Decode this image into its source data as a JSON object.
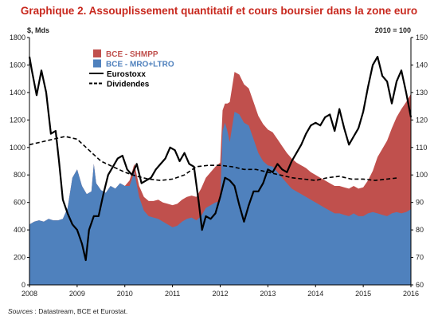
{
  "title": "Graphique 2. Assouplissement quantitatif et cours boursier dans la zone euro",
  "source": {
    "label": "Sources",
    "text": " : Datastream, BCE et Eurostat."
  },
  "colors": {
    "shmpp": "#c0504d",
    "mro": "#4f81bd",
    "eurostoxx": "#000000",
    "dividendes": "#000000",
    "title": "#c8281e",
    "legend_shmpp_text": "#c0504d",
    "legend_mro_text": "#4f81bd"
  },
  "chart_data": {
    "type": "area",
    "left_axis": {
      "unit": "$, Mds",
      "ylim": [
        0,
        1800
      ],
      "ticks": [
        0,
        200,
        400,
        600,
        800,
        1000,
        1200,
        1400,
        1600,
        1800
      ]
    },
    "right_axis": {
      "unit": "2010 = 100",
      "ylim": [
        60,
        150
      ],
      "ticks": [
        60,
        70,
        80,
        90,
        100,
        110,
        120,
        130,
        140,
        150
      ]
    },
    "x_axis": {
      "xlim": [
        2008,
        2016
      ],
      "ticks": [
        "2008",
        "2009",
        "2010",
        "2011",
        "2012",
        "2013",
        "2014",
        "2015",
        "2016"
      ]
    },
    "legend": {
      "position": "top-left",
      "entries": [
        {
          "label": "BCE - SHMPP",
          "kind": "area",
          "color": "#c0504d"
        },
        {
          "label": "BCE - MRO+LTRO",
          "kind": "area",
          "color": "#4f81bd"
        },
        {
          "label": "Eurostoxx",
          "kind": "solid-line",
          "color": "#000000"
        },
        {
          "label": "Dividendes",
          "kind": "dashed-line",
          "color": "#000000"
        }
      ]
    },
    "series": [
      {
        "name": "BCE - MRO+LTRO",
        "axis": "left",
        "kind": "area",
        "x": [
          2008.0,
          2008.1,
          2008.2,
          2008.3,
          2008.4,
          2008.5,
          2008.6,
          2008.7,
          2008.8,
          2008.9,
          2009.0,
          2009.1,
          2009.2,
          2009.3,
          2009.35,
          2009.4,
          2009.5,
          2009.6,
          2009.7,
          2009.8,
          2009.9,
          2010.0,
          2010.1,
          2010.2,
          2010.3,
          2010.4,
          2010.5,
          2010.6,
          2010.7,
          2010.8,
          2010.9,
          2011.0,
          2011.1,
          2011.2,
          2011.3,
          2011.4,
          2011.5,
          2011.6,
          2011.7,
          2011.8,
          2011.9,
          2012.0,
          2012.05,
          2012.1,
          2012.15,
          2012.2,
          2012.3,
          2012.4,
          2012.5,
          2012.6,
          2012.7,
          2012.8,
          2012.9,
          2013.0,
          2013.1,
          2013.2,
          2013.3,
          2013.4,
          2013.5,
          2013.6,
          2013.7,
          2013.8,
          2013.9,
          2014.0,
          2014.1,
          2014.2,
          2014.3,
          2014.4,
          2014.5,
          2014.6,
          2014.7,
          2014.8,
          2014.9,
          2015.0,
          2015.1,
          2015.2,
          2015.3,
          2015.4,
          2015.5,
          2015.6,
          2015.7,
          2015.8,
          2015.9,
          2016.0
        ],
        "values": [
          440,
          460,
          470,
          460,
          480,
          470,
          470,
          480,
          560,
          780,
          840,
          720,
          660,
          680,
          880,
          740,
          690,
          670,
          720,
          700,
          740,
          720,
          720,
          820,
          640,
          540,
          500,
          490,
          480,
          460,
          440,
          420,
          430,
          460,
          480,
          490,
          470,
          500,
          560,
          580,
          600,
          610,
          1120,
          1180,
          1120,
          1040,
          1260,
          1240,
          1180,
          1160,
          1060,
          960,
          900,
          870,
          860,
          820,
          780,
          740,
          700,
          680,
          660,
          640,
          620,
          600,
          580,
          560,
          540,
          520,
          520,
          510,
          500,
          520,
          500,
          500,
          520,
          530,
          520,
          510,
          500,
          520,
          530,
          520,
          530,
          550
        ]
      },
      {
        "name": "BCE - SHMPP",
        "axis": "left",
        "kind": "area",
        "x": [
          2008.0,
          2008.1,
          2008.2,
          2008.3,
          2008.4,
          2008.5,
          2008.6,
          2008.7,
          2008.8,
          2008.9,
          2009.0,
          2009.1,
          2009.2,
          2009.3,
          2009.35,
          2009.4,
          2009.5,
          2009.6,
          2009.7,
          2009.8,
          2009.9,
          2010.0,
          2010.1,
          2010.2,
          2010.3,
          2010.4,
          2010.5,
          2010.6,
          2010.7,
          2010.8,
          2010.9,
          2011.0,
          2011.1,
          2011.2,
          2011.3,
          2011.4,
          2011.5,
          2011.6,
          2011.7,
          2011.8,
          2011.9,
          2012.0,
          2012.05,
          2012.1,
          2012.15,
          2012.2,
          2012.3,
          2012.4,
          2012.5,
          2012.6,
          2012.7,
          2012.8,
          2012.9,
          2013.0,
          2013.1,
          2013.2,
          2013.3,
          2013.4,
          2013.5,
          2013.6,
          2013.7,
          2013.8,
          2013.9,
          2014.0,
          2014.1,
          2014.2,
          2014.3,
          2014.4,
          2014.5,
          2014.6,
          2014.7,
          2014.8,
          2014.9,
          2015.0,
          2015.1,
          2015.2,
          2015.3,
          2015.4,
          2015.5,
          2015.6,
          2015.7,
          2015.8,
          2015.9,
          2016.0
        ],
        "values": [
          0,
          0,
          0,
          0,
          0,
          0,
          0,
          0,
          0,
          0,
          0,
          0,
          0,
          0,
          0,
          0,
          0,
          0,
          0,
          0,
          0,
          0,
          40,
          60,
          80,
          100,
          110,
          120,
          140,
          140,
          150,
          160,
          160,
          160,
          160,
          160,
          170,
          200,
          220,
          240,
          260,
          280,
          150,
          140,
          200,
          290,
          290,
          290,
          280,
          270,
          270,
          270,
          270,
          260,
          250,
          240,
          230,
          220,
          220,
          210,
          210,
          210,
          200,
          200,
          200,
          200,
          200,
          200,
          200,
          200,
          200,
          200,
          200,
          210,
          240,
          300,
          410,
          480,
          550,
          620,
          690,
          760,
          800,
          840
        ]
      },
      {
        "name": "Eurostoxx",
        "axis": "right",
        "kind": "line",
        "x": [
          2008.0,
          2008.05,
          2008.15,
          2008.25,
          2008.35,
          2008.45,
          2008.55,
          2008.62,
          2008.7,
          2008.8,
          2008.9,
          2009.0,
          2009.1,
          2009.18,
          2009.25,
          2009.35,
          2009.45,
          2009.55,
          2009.65,
          2009.75,
          2009.85,
          2009.95,
          2010.05,
          2010.15,
          2010.25,
          2010.35,
          2010.45,
          2010.55,
          2010.65,
          2010.75,
          2010.85,
          2010.95,
          2011.05,
          2011.15,
          2011.25,
          2011.35,
          2011.45,
          2011.55,
          2011.62,
          2011.7,
          2011.8,
          2011.9,
          2012.0,
          2012.1,
          2012.2,
          2012.3,
          2012.4,
          2012.5,
          2012.6,
          2012.7,
          2012.8,
          2012.9,
          2013.0,
          2013.1,
          2013.2,
          2013.3,
          2013.4,
          2013.5,
          2013.6,
          2013.7,
          2013.8,
          2013.9,
          2014.0,
          2014.1,
          2014.2,
          2014.3,
          2014.4,
          2014.5,
          2014.6,
          2014.7,
          2014.8,
          2014.9,
          2015.0,
          2015.1,
          2015.2,
          2015.3,
          2015.4,
          2015.5,
          2015.6,
          2015.7,
          2015.8,
          2015.9,
          2016.0
        ],
        "values": [
          143,
          138,
          129,
          138,
          130,
          115,
          116,
          105,
          91,
          86,
          82,
          80,
          75,
          69,
          80,
          85,
          85,
          93,
          100,
          103,
          106,
          107,
          102,
          100,
          104,
          97,
          98,
          99,
          102,
          104,
          106,
          110,
          109,
          105,
          108,
          104,
          103,
          90,
          80,
          85,
          84,
          86,
          92,
          99,
          98,
          96,
          89,
          83,
          89,
          94,
          94,
          97,
          102,
          101,
          104,
          102,
          101,
          105,
          108,
          111,
          115,
          118,
          119,
          118,
          121,
          122,
          116,
          124,
          117,
          111,
          114,
          117,
          123,
          132,
          140,
          143,
          136,
          134,
          126,
          134,
          138,
          130,
          121
        ]
      },
      {
        "name": "Dividendes",
        "axis": "right",
        "kind": "dashed-line",
        "x": [
          2008.0,
          2008.25,
          2008.5,
          2008.75,
          2009.0,
          2009.25,
          2009.5,
          2009.75,
          2010.0,
          2010.25,
          2010.5,
          2010.75,
          2011.0,
          2011.25,
          2011.5,
          2011.75,
          2012.0,
          2012.25,
          2012.5,
          2012.75,
          2013.0,
          2013.25,
          2013.5,
          2013.75,
          2014.0,
          2014.25,
          2014.5,
          2014.75,
          2015.0,
          2015.25,
          2015.5,
          2015.75
        ],
        "values": [
          111,
          112,
          113,
          114,
          113,
          109,
          105,
          103,
          101,
          99.5,
          98.5,
          98,
          98.5,
          100,
          103,
          103.5,
          103.5,
          103,
          102,
          102,
          101,
          100,
          99,
          98.5,
          98,
          99,
          99.5,
          98.5,
          98.5,
          98,
          98.5,
          99
        ]
      }
    ]
  }
}
